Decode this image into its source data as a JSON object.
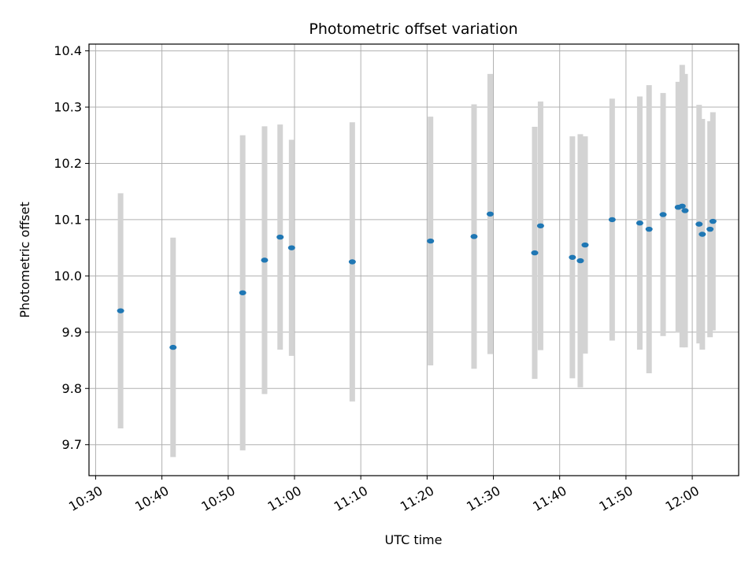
{
  "chart_data": {
    "type": "scatter",
    "title": "Photometric offset variation",
    "xlabel": "UTC time",
    "ylabel": "Photometric offset",
    "x_unit": "time of day (UTC)",
    "xlim": [
      "10:29",
      "12:07"
    ],
    "ylim": [
      9.645,
      10.412
    ],
    "xticks": [
      "10:30",
      "10:40",
      "10:50",
      "11:00",
      "11:10",
      "11:20",
      "11:30",
      "11:40",
      "11:50",
      "12:00"
    ],
    "yticks": [
      9.7,
      9.8,
      9.9,
      10.0,
      10.1,
      10.2,
      10.3,
      10.4
    ],
    "ytick_labels": [
      "9.7",
      "9.8",
      "9.9",
      "10.0",
      "10.1",
      "10.2",
      "10.3",
      "10.4"
    ],
    "grid": true,
    "point_color": "#1f77b4",
    "errorbar_color": "#d3d3d3",
    "points": [
      {
        "x": "10:33:46",
        "y": 9.938,
        "yerr": 0.209
      },
      {
        "x": "10:41:41",
        "y": 9.873,
        "yerr": 0.195
      },
      {
        "x": "10:52:11",
        "y": 9.97,
        "yerr": 0.28
      },
      {
        "x": "10:55:29",
        "y": 10.028,
        "yerr": 0.238
      },
      {
        "x": "10:57:50",
        "y": 10.069,
        "yerr": 0.2
      },
      {
        "x": "10:59:34",
        "y": 10.05,
        "yerr": 0.192
      },
      {
        "x": "11:08:43",
        "y": 10.025,
        "yerr": 0.248
      },
      {
        "x": "11:20:31",
        "y": 10.062,
        "yerr": 0.221
      },
      {
        "x": "11:27:05",
        "y": 10.07,
        "yerr": 0.235
      },
      {
        "x": "11:29:31",
        "y": 10.11,
        "yerr": 0.249
      },
      {
        "x": "11:36:14",
        "y": 10.041,
        "yerr": 0.224
      },
      {
        "x": "11:37:07",
        "y": 10.089,
        "yerr": 0.221
      },
      {
        "x": "11:41:55",
        "y": 10.033,
        "yerr": 0.215
      },
      {
        "x": "11:43:07",
        "y": 10.027,
        "yerr": 0.225
      },
      {
        "x": "11:43:50",
        "y": 10.055,
        "yerr": 0.193
      },
      {
        "x": "11:47:55",
        "y": 10.1,
        "yerr": 0.215
      },
      {
        "x": "11:52:05",
        "y": 10.094,
        "yerr": 0.225
      },
      {
        "x": "11:53:29",
        "y": 10.083,
        "yerr": 0.256
      },
      {
        "x": "11:55:36",
        "y": 10.109,
        "yerr": 0.216
      },
      {
        "x": "11:57:53",
        "y": 10.122,
        "yerr": 0.223
      },
      {
        "x": "11:58:29",
        "y": 10.124,
        "yerr": 0.251
      },
      {
        "x": "11:58:55",
        "y": 10.116,
        "yerr": 0.243
      },
      {
        "x": "12:01:02",
        "y": 10.092,
        "yerr": 0.212
      },
      {
        "x": "12:01:31",
        "y": 10.074,
        "yerr": 0.205
      },
      {
        "x": "12:02:41",
        "y": 10.083,
        "yerr": 0.192
      },
      {
        "x": "12:03:07",
        "y": 10.097,
        "yerr": 0.194
      }
    ]
  }
}
